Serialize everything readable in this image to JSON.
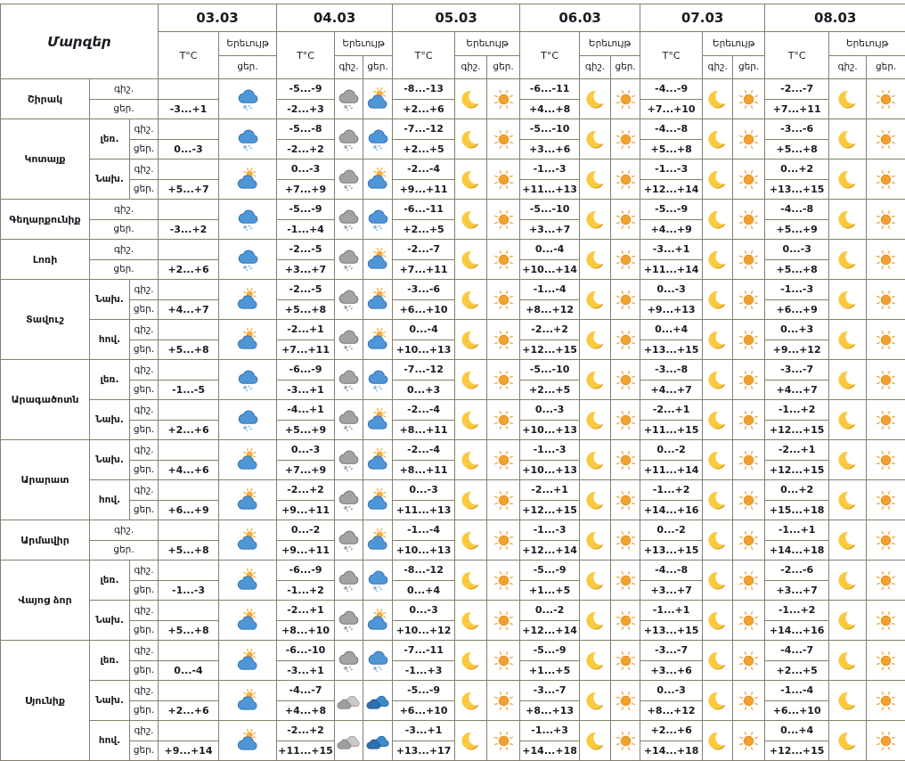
{
  "table": {
    "corner_label": "Մարզեր",
    "temp_header": "T°C",
    "phenomenon_header": "Երեւույթ",
    "night_label": "գիշ.",
    "day_label": "ցեր.",
    "dates": [
      "03.03",
      "04.03",
      "05.03",
      "06.03",
      "07.03",
      "08.03"
    ],
    "icon_legend": {
      "moon": "clear-night",
      "sun": "clear-day",
      "sun-cloud": "partly-cloudy",
      "sleet-blue": "snow-sleet-day",
      "snow-gray": "snow-night",
      "cloud-gray": "cloudy-night",
      "cloud-blue": "cloudy-day"
    },
    "colors": {
      "border": "#857F6B",
      "text": "#1A1A20",
      "sun": "#F2A12E",
      "moon": "#FBC93E",
      "cloud_blue": "#4E96D8",
      "cloud_gray": "#A3A3A3"
    },
    "regions": [
      {
        "name": "Շիրակ",
        "zones": [
          {
            "label": "",
            "night_temps": [
              "",
              "-5...-9",
              "-8...-13",
              "-6...-11",
              "-4...-9",
              "-2...-7"
            ],
            "day_temps": [
              "-3...+1",
              "-2...+3",
              "+2...+6",
              "+4...+8",
              "+7...+10",
              "+7...+11"
            ],
            "night_icons": [
              null,
              "snow-gray",
              "moon",
              "moon",
              "moon",
              "moon"
            ],
            "day_icons": [
              "sleet-blue",
              "sun-cloud",
              "sun",
              "sun",
              "sun",
              "sun"
            ]
          }
        ]
      },
      {
        "name": "Կոտայք",
        "zones": [
          {
            "label": "լեռ.",
            "night_temps": [
              "",
              "-5...-8",
              "-7...-12",
              "-5...-10",
              "-4...-8",
              "-3...-6"
            ],
            "day_temps": [
              "0...-3",
              "-2...+2",
              "+2...+5",
              "+3...+6",
              "+5...+8",
              "+5...+8"
            ],
            "night_icons": [
              null,
              "snow-gray",
              "moon",
              "moon",
              "moon",
              "moon"
            ],
            "day_icons": [
              "sleet-blue",
              "sleet-blue",
              "sun",
              "sun",
              "sun",
              "sun"
            ]
          },
          {
            "label": "Նախ.",
            "night_temps": [
              "",
              "0...-3",
              "-2...-4",
              "-1...-3",
              "-1...-3",
              "0...+2"
            ],
            "day_temps": [
              "+5...+7",
              "+7...+9",
              "+9...+11",
              "+11...+13",
              "+12...+14",
              "+13...+15"
            ],
            "night_icons": [
              null,
              "snow-gray",
              "moon",
              "moon",
              "moon",
              "moon"
            ],
            "day_icons": [
              "sun-cloud",
              "sun-cloud",
              "sun",
              "sun",
              "sun",
              "sun"
            ]
          }
        ]
      },
      {
        "name": "Գեղարքունիք",
        "zones": [
          {
            "label": "",
            "night_temps": [
              "",
              "-5...-9",
              "-6...-11",
              "-5...-10",
              "-5...-9",
              "-4...-8"
            ],
            "day_temps": [
              "-3...+2",
              "-1...+4",
              "+2...+5",
              "+3...+7",
              "+4...+9",
              "+5...+9"
            ],
            "night_icons": [
              null,
              "snow-gray",
              "moon",
              "moon",
              "moon",
              "moon"
            ],
            "day_icons": [
              "sleet-blue",
              "sleet-blue",
              "sun",
              "sun",
              "sun",
              "sun"
            ]
          }
        ]
      },
      {
        "name": "Լոռի",
        "zones": [
          {
            "label": "",
            "night_temps": [
              "",
              "-2...-5",
              "-2...-7",
              "0...-4",
              "-3...+1",
              "0...-3"
            ],
            "day_temps": [
              "+2...+6",
              "+3...+7",
              "+7...+11",
              "+10...+14",
              "+11...+14",
              "+5...+8"
            ],
            "night_icons": [
              null,
              "snow-gray",
              "moon",
              "moon",
              "moon",
              "moon"
            ],
            "day_icons": [
              "sleet-blue",
              "sun-cloud",
              "sun",
              "sun",
              "sun",
              "sun"
            ]
          }
        ]
      },
      {
        "name": "Տավուշ",
        "zones": [
          {
            "label": "Նախ.",
            "night_temps": [
              "",
              "-2...-5",
              "-3...-6",
              "-1...-4",
              "0...-3",
              "-1...-3"
            ],
            "day_temps": [
              "+4...+7",
              "+5...+8",
              "+6...+10",
              "+8...+12",
              "+9...+13",
              "+6...+9"
            ],
            "night_icons": [
              null,
              "snow-gray",
              "moon",
              "moon",
              "moon",
              "moon"
            ],
            "day_icons": [
              "sun-cloud",
              "sun-cloud",
              "sun",
              "sun",
              "sun",
              "sun"
            ]
          },
          {
            "label": "հով.",
            "night_temps": [
              "",
              "-2...+1",
              "0...-4",
              "-2...+2",
              "0...+4",
              "0...+3"
            ],
            "day_temps": [
              "+5...+8",
              "+7...+11",
              "+10...+13",
              "+12...+15",
              "+13...+15",
              "+9...+12"
            ],
            "night_icons": [
              null,
              "snow-gray",
              "moon",
              "moon",
              "moon",
              "moon"
            ],
            "day_icons": [
              "sun-cloud",
              "sun-cloud",
              "sun",
              "sun",
              "sun",
              "sun"
            ]
          }
        ]
      },
      {
        "name": "Արագածոտն",
        "zones": [
          {
            "label": "լեռ.",
            "night_temps": [
              "",
              "-6...-9",
              "-7...-12",
              "-5...-10",
              "-3...-8",
              "-3...-7"
            ],
            "day_temps": [
              "-1...-5",
              "-3...+1",
              "0...+3",
              "+2...+5",
              "+4...+7",
              "+4...+7"
            ],
            "night_icons": [
              null,
              "snow-gray",
              "moon",
              "moon",
              "moon",
              "moon"
            ],
            "day_icons": [
              "sleet-blue",
              "sleet-blue",
              "sun",
              "sun",
              "sun",
              "sun"
            ]
          },
          {
            "label": "Նախ.",
            "night_temps": [
              "",
              "-4...+1",
              "-2...-4",
              "0...-3",
              "-2...+1",
              "-1...+2"
            ],
            "day_temps": [
              "+2...+6",
              "+5...+9",
              "+8...+11",
              "+10...+13",
              "+11...+15",
              "+12...+15"
            ],
            "night_icons": [
              null,
              "snow-gray",
              "moon",
              "moon",
              "moon",
              "moon"
            ],
            "day_icons": [
              "sleet-blue",
              "sun-cloud",
              "sun",
              "sun",
              "sun",
              "sun"
            ]
          }
        ]
      },
      {
        "name": "Արարատ",
        "zones": [
          {
            "label": "Նախ.",
            "night_temps": [
              "",
              "0...-3",
              "-2...-4",
              "-1...-3",
              "0...-2",
              "-2...+1"
            ],
            "day_temps": [
              "+4...+6",
              "+7...+9",
              "+8...+11",
              "+10...+13",
              "+11...+14",
              "+12...+15"
            ],
            "night_icons": [
              null,
              "snow-gray",
              "moon",
              "moon",
              "moon",
              "moon"
            ],
            "day_icons": [
              "sun-cloud",
              "sun-cloud",
              "sun",
              "sun",
              "sun",
              "sun"
            ]
          },
          {
            "label": "հով.",
            "night_temps": [
              "",
              "-2...+2",
              "0...-3",
              "-2...+1",
              "-1...+2",
              "0...+2"
            ],
            "day_temps": [
              "+6...+9",
              "+9...+11",
              "+11...+13",
              "+12...+15",
              "+14...+16",
              "+15...+18"
            ],
            "night_icons": [
              null,
              "snow-gray",
              "moon",
              "moon",
              "moon",
              "moon"
            ],
            "day_icons": [
              "sun-cloud",
              "sun-cloud",
              "sun",
              "sun",
              "sun",
              "sun"
            ]
          }
        ]
      },
      {
        "name": "Արմավիր",
        "zones": [
          {
            "label": "",
            "night_temps": [
              "",
              "0...-2",
              "-1...-4",
              "-1...-3",
              "0...-2",
              "-1...+1"
            ],
            "day_temps": [
              "+5...+8",
              "+9...+11",
              "+10...+13",
              "+12...+14",
              "+13...+15",
              "+14...+18"
            ],
            "night_icons": [
              null,
              "snow-gray",
              "moon",
              "moon",
              "moon",
              "moon"
            ],
            "day_icons": [
              "sun-cloud",
              "sun-cloud",
              "sun",
              "sun",
              "sun",
              "sun"
            ]
          }
        ]
      },
      {
        "name": "Վայոց ձոր",
        "zones": [
          {
            "label": "լեռ.",
            "night_temps": [
              "",
              "-6...-9",
              "-8...-12",
              "-5...-9",
              "-4...-8",
              "-2...-6"
            ],
            "day_temps": [
              "-1...-3",
              "-1...+2",
              "0...+4",
              "+1...+5",
              "+3...+7",
              "+3...+7"
            ],
            "night_icons": [
              null,
              "snow-gray",
              "moon",
              "moon",
              "moon",
              "moon"
            ],
            "day_icons": [
              "sun-cloud",
              "sleet-blue",
              "sun",
              "sun",
              "sun",
              "sun"
            ]
          },
          {
            "label": "Նախ.",
            "night_temps": [
              "",
              "-2...+1",
              "0...-3",
              "0...-2",
              "-1...+1",
              "-1...+2"
            ],
            "day_temps": [
              "+5...+8",
              "+8...+10",
              "+10...+12",
              "+12...+14",
              "+13...+15",
              "+14...+16"
            ],
            "night_icons": [
              null,
              "snow-gray",
              "moon",
              "moon",
              "moon",
              "moon"
            ],
            "day_icons": [
              "sun-cloud",
              "sun-cloud",
              "sun",
              "sun",
              "sun",
              "sun"
            ]
          }
        ]
      },
      {
        "name": "Սյունիք",
        "zones": [
          {
            "label": "լեռ.",
            "night_temps": [
              "",
              "-6...-10",
              "-7...-11",
              "-5...-9",
              "-3...-7",
              "-4...-7"
            ],
            "day_temps": [
              "0...-4",
              "-3...+1",
              "-1...+3",
              "+1...+5",
              "+3...+6",
              "+2...+5"
            ],
            "night_icons": [
              null,
              "snow-gray",
              "moon",
              "moon",
              "moon",
              "moon"
            ],
            "day_icons": [
              "sun-cloud",
              "sleet-blue",
              "sun",
              "sun",
              "sun",
              "sun"
            ]
          },
          {
            "label": "Նախ.",
            "night_temps": [
              "",
              "-4...-7",
              "-5...-9",
              "-3...-7",
              "0...-3",
              "-1...-4"
            ],
            "day_temps": [
              "+2...+6",
              "+4...+8",
              "+6...+10",
              "+8...+13",
              "+8...+12",
              "+6...+10"
            ],
            "night_icons": [
              null,
              "cloud-gray",
              "moon",
              "moon",
              "moon",
              "moon"
            ],
            "day_icons": [
              "sun-cloud",
              "cloud-blue",
              "sun",
              "sun",
              "sun",
              "sun"
            ]
          },
          {
            "label": "հով.",
            "night_temps": [
              "",
              "-2...+2",
              "-3...+1",
              "-1...+3",
              "+2...+6",
              "0...+4"
            ],
            "day_temps": [
              "+9...+14",
              "+11...+15",
              "+13...+17",
              "+14...+18",
              "+14...+18",
              "+12...+15"
            ],
            "night_icons": [
              null,
              "cloud-gray",
              "moon",
              "moon",
              "moon",
              "moon"
            ],
            "day_icons": [
              "sun-cloud",
              "cloud-blue",
              "sun",
              "sun",
              "sun",
              "sun"
            ]
          }
        ]
      }
    ]
  }
}
